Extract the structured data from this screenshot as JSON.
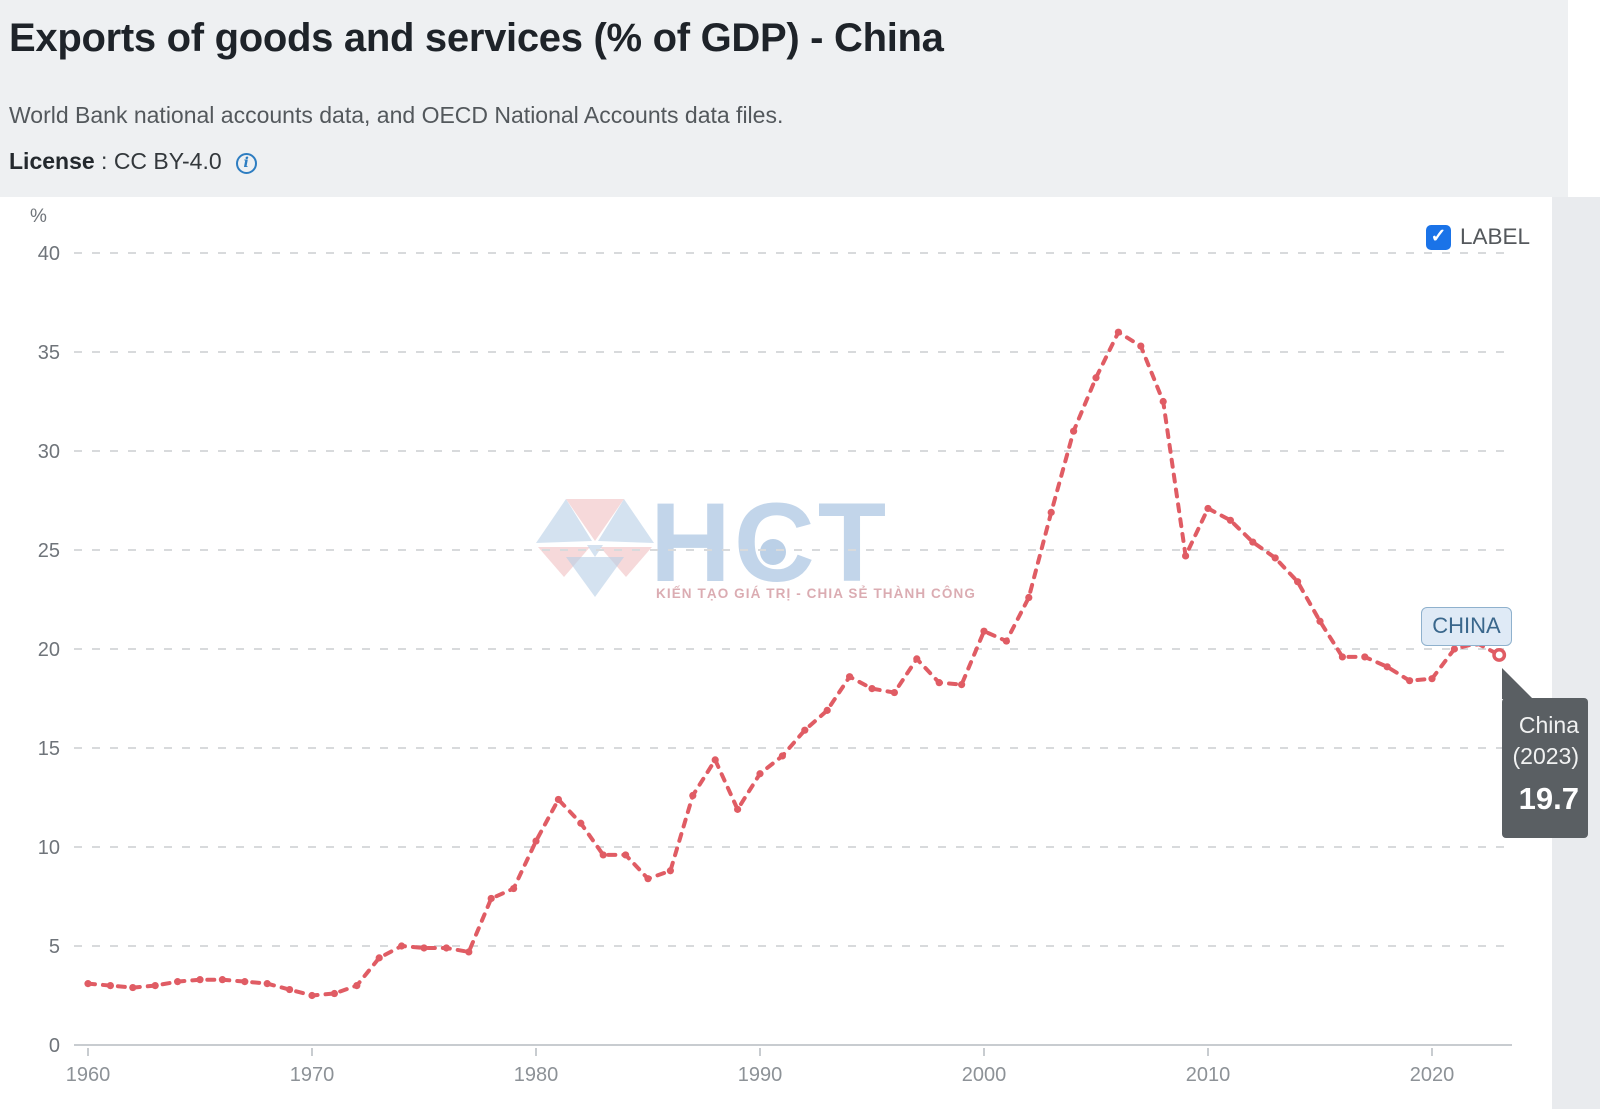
{
  "header": {
    "title": "Exports of goods and services (% of GDP) - China",
    "subtitle": "World Bank national accounts data, and OECD National Accounts data files.",
    "license_label": "License",
    "license_value": " : CC BY-4.0",
    "license_info_icon": "info-icon"
  },
  "controls": {
    "label_toggle": {
      "label": "LABEL",
      "checked": true,
      "checkbox_color": "#1a73e8",
      "check_icon": "checkmark-icon"
    }
  },
  "chart_data": {
    "type": "line",
    "title": "Exports of goods and services (% of GDP) - China",
    "ylabel": "%",
    "xlabel": "",
    "ylim": [
      0,
      40
    ],
    "yticks": [
      0,
      5,
      10,
      15,
      20,
      25,
      30,
      35,
      40
    ],
    "xticks": [
      1960,
      1970,
      1980,
      1990,
      2000,
      2010,
      2020
    ],
    "grid": "horizontal-dashed",
    "legend_position": "none",
    "series": [
      {
        "name": "China",
        "color": "#e05c64",
        "style": "dashed-with-dots",
        "x": [
          1960,
          1961,
          1962,
          1963,
          1964,
          1965,
          1966,
          1967,
          1968,
          1969,
          1970,
          1971,
          1972,
          1973,
          1974,
          1975,
          1976,
          1977,
          1978,
          1979,
          1980,
          1981,
          1982,
          1983,
          1984,
          1985,
          1986,
          1987,
          1988,
          1989,
          1990,
          1991,
          1992,
          1993,
          1994,
          1995,
          1996,
          1997,
          1998,
          1999,
          2000,
          2001,
          2002,
          2003,
          2004,
          2005,
          2006,
          2007,
          2008,
          2009,
          2010,
          2011,
          2012,
          2013,
          2014,
          2015,
          2016,
          2017,
          2018,
          2019,
          2020,
          2021,
          2022,
          2023
        ],
        "values": [
          3.1,
          3.0,
          2.9,
          3.0,
          3.2,
          3.3,
          3.3,
          3.2,
          3.1,
          2.8,
          2.5,
          2.6,
          3.0,
          4.4,
          5.0,
          4.9,
          4.9,
          4.7,
          7.4,
          7.9,
          10.3,
          12.4,
          11.2,
          9.6,
          9.6,
          8.4,
          8.8,
          12.6,
          14.4,
          11.9,
          13.7,
          14.6,
          15.9,
          16.9,
          18.6,
          18.0,
          17.8,
          19.5,
          18.3,
          18.2,
          20.9,
          20.4,
          22.6,
          26.9,
          31.0,
          33.7,
          36.0,
          35.3,
          32.5,
          24.7,
          27.1,
          26.5,
          25.4,
          24.6,
          23.4,
          21.4,
          19.6,
          19.6,
          19.1,
          18.4,
          18.5,
          20.0,
          20.3,
          19.7
        ]
      }
    ],
    "end_label": "CHINA",
    "end_point": {
      "year": 2023,
      "value": 19.7,
      "marker": "open-circle"
    }
  },
  "tooltip": {
    "country": "China",
    "year_label": "(2023)",
    "value": "19.7"
  },
  "watermark": {
    "logo": "hct-diamond-logo",
    "text": "HCT",
    "tagline": "KIẾN TẠO GIÁ TRỊ - CHIA SẺ THÀNH CÔNG"
  },
  "colors": {
    "page_bg": "#eef0f2",
    "chart_bg": "#ffffff",
    "side_panel_bg": "#e9ebee",
    "line": "#e05c64",
    "grid": "#d8dadc",
    "axis": "#c8ccd0",
    "checkbox": "#1a73e8",
    "china_chip_bg": "#dfeaf6",
    "china_chip_border": "#8fb1cd",
    "china_chip_text": "#3a678c",
    "tooltip_bg": "#5a5f63"
  }
}
